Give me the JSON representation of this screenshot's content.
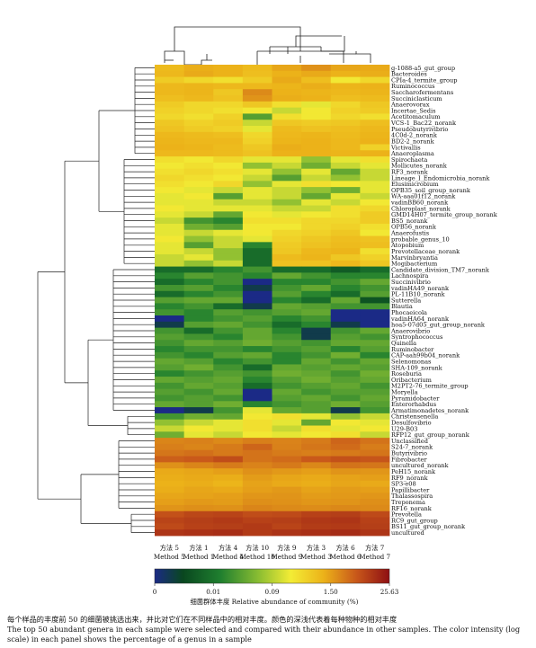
{
  "chart_data": {
    "type": "heatmap",
    "title": "",
    "xlabel": "",
    "ylabel": "",
    "x": [
      {
        "cn": "方法 5",
        "en": "Method 5"
      },
      {
        "cn": "方法 1",
        "en": "Method 1"
      },
      {
        "cn": "方法 4",
        "en": "Method 4"
      },
      {
        "cn": "方法 10",
        "en": "Method 10"
      },
      {
        "cn": "方法 9",
        "en": "Method 9"
      },
      {
        "cn": "方法 3",
        "en": "Method 3"
      },
      {
        "cn": "方法 6",
        "en": "Method 6"
      },
      {
        "cn": "方法 7",
        "en": "Method 7"
      }
    ],
    "y": [
      "g-1088-a5_gut_group",
      "Bacteroides",
      "CPIa-4_termite_group",
      "Ruminococcus",
      "Saccharofermentans",
      "Succiniclasticum",
      "Anaerovorax",
      "Incertae_Sedis",
      "Acetitomaculum",
      "VCS-1_Bac22_norank",
      "Pseudobutyrivibrio",
      "4C0d-2_norank",
      "BD2-2_norank",
      "Victivallis",
      "Anaeroplasma",
      "Spirochaeta",
      "Mollicutes_norank",
      "RF3_norank",
      "Lineage_I_Endomicrobia_norank",
      "Elusimicrobium",
      "OPB35_soil_group_norank",
      "WA-aaa01f12_norank",
      "vadinBB60_norank",
      "Chloroplast_norank",
      "GMD14H07_termite_group_norank",
      "BS5_norank",
      "OPB56_norank",
      "Anaerofustis",
      "probable_genus_10",
      "Atopobium",
      "Prevotellaceae_norank",
      "Marvinbryantia",
      "Mogibacterium",
      "Candidate_division_TM7_norank",
      "Lachnospira",
      "Succinivibrio",
      "vadinHA49_norank",
      "PL-11B10_norank",
      "Sutterella",
      "Blautia",
      "Phocaeicola",
      "vadinHA64_norank",
      "hoa5-07d05_gut_group_norank",
      "Anaerovibrio",
      "Syntrophococcus",
      "Quinella",
      "Ruminobacter",
      "CAP-aah99b04_norank",
      "Selenomonas",
      "SHA-109_norank",
      "Roseburia",
      "Oribacterium",
      "M2PT2-76_termite_group",
      "Moryella",
      "Pyramidobacter",
      "Enterorhabdus",
      "Armatimonadetes_norank",
      "Christensenella",
      "Desulfovibrio",
      "U29-B03",
      "RFP12_gut_group_norank",
      "Unclassified",
      "S24-7_norank",
      "Butyrivibrio",
      "Fibrobacter",
      "uncultured_norank",
      "PeH15_norank",
      "RF9_norank",
      "SP3-e08",
      "Papillibacter",
      "Thalassospira",
      "Treponema",
      "RF16_norank",
      "Prevotella",
      "RC9_gut_group",
      "BS11_gut_group_norank",
      "uncultured"
    ],
    "values": [
      [
        1.2,
        1.6,
        1.5,
        1.2,
        1.8,
        2.5,
        1.8,
        1.7
      ],
      [
        1.3,
        1.7,
        1.5,
        1.1,
        1.5,
        1.7,
        1.5,
        1.6
      ],
      [
        0.8,
        0.6,
        0.5,
        0.8,
        1.7,
        1.1,
        0.4,
        0.6
      ],
      [
        1.3,
        1.4,
        1.3,
        1.3,
        1.4,
        1.6,
        1.4,
        1.5
      ],
      [
        1.3,
        1.4,
        0.9,
        2.8,
        1.5,
        1.4,
        1.3,
        1.4
      ],
      [
        1.1,
        1.3,
        1.0,
        2.4,
        1.6,
        1.5,
        1.1,
        1.2
      ],
      [
        0.8,
        0.6,
        0.6,
        0.9,
        0.5,
        0.3,
        0.6,
        0.9
      ],
      [
        0.7,
        0.6,
        0.5,
        0.4,
        0.2,
        0.4,
        0.7,
        0.8
      ],
      [
        0.6,
        0.5,
        0.7,
        0.04,
        0.5,
        0.4,
        0.6,
        0.5
      ],
      [
        0.9,
        0.7,
        0.8,
        0.2,
        0.9,
        0.8,
        0.9,
        1.1
      ],
      [
        1.0,
        0.8,
        0.7,
        0.3,
        1.2,
        1.0,
        1.1,
        1.3
      ],
      [
        1.3,
        1.2,
        1.1,
        0.6,
        1.3,
        1.4,
        1.2,
        1.4
      ],
      [
        1.4,
        1.3,
        1.3,
        0.7,
        1.4,
        1.5,
        1.3,
        1.5
      ],
      [
        1.5,
        1.4,
        1.2,
        0.9,
        1.6,
        1.5,
        1.3,
        0.7
      ],
      [
        1.3,
        1.3,
        1.2,
        1.0,
        1.5,
        1.5,
        1.4,
        1.5
      ],
      [
        0.5,
        0.4,
        0.6,
        0.3,
        0.3,
        0.1,
        0.3,
        0.5
      ],
      [
        0.4,
        0.5,
        0.4,
        0.1,
        0.2,
        0.06,
        0.2,
        0.3
      ],
      [
        0.5,
        0.6,
        0.5,
        0.3,
        0.1,
        0.3,
        0.05,
        0.2
      ],
      [
        0.6,
        0.5,
        0.4,
        0.2,
        0.04,
        0.2,
        0.1,
        0.2
      ],
      [
        0.5,
        0.4,
        0.6,
        0.1,
        0.3,
        0.5,
        0.4,
        0.3
      ],
      [
        0.4,
        0.3,
        0.2,
        0.3,
        0.2,
        0.1,
        0.06,
        0.3
      ],
      [
        0.3,
        0.4,
        0.04,
        0.3,
        0.2,
        0.05,
        0.3,
        0.2
      ],
      [
        0.3,
        0.3,
        0.2,
        0.2,
        0.1,
        0.3,
        0.2,
        0.4
      ],
      [
        0.4,
        0.3,
        0.3,
        0.3,
        0.2,
        0.2,
        0.5,
        0.6
      ],
      [
        0.3,
        0.2,
        0.05,
        0.4,
        0.3,
        0.4,
        0.5,
        0.8
      ],
      [
        0.2,
        0.03,
        0.02,
        0.5,
        0.5,
        0.6,
        0.6,
        0.8
      ],
      [
        0.3,
        0.06,
        0.04,
        0.4,
        0.4,
        0.6,
        0.7,
        0.5
      ],
      [
        0.3,
        0.2,
        0.3,
        0.4,
        0.6,
        0.7,
        0.9,
        0.4
      ],
      [
        0.4,
        0.1,
        0.2,
        0.3,
        0.7,
        0.9,
        1.1,
        1.0
      ],
      [
        0.3,
        0.04,
        0.2,
        0.02,
        0.8,
        1.0,
        1.2,
        1.1
      ],
      [
        0.3,
        0.2,
        0.1,
        0.01,
        0.9,
        1.3,
        1.4,
        0.5
      ],
      [
        0.2,
        0.3,
        0.1,
        0.01,
        1.2,
        1.4,
        0.9,
        0.7
      ],
      [
        0.2,
        0.1,
        0.2,
        0.01,
        1.0,
        1.0,
        1.3,
        0.9
      ],
      [
        0.01,
        0.01,
        0.02,
        0.03,
        0.01,
        0.01,
        0.006,
        0.01
      ],
      [
        0.02,
        0.04,
        0.03,
        0.02,
        0.05,
        0.03,
        0.02,
        0.02
      ],
      [
        0.01,
        0.02,
        0.03,
        0.001,
        0.02,
        0.02,
        0.03,
        0.05
      ],
      [
        0.03,
        0.04,
        0.02,
        0.002,
        0.03,
        0.05,
        0.02,
        0.03
      ],
      [
        0.01,
        0.02,
        0.03,
        0.001,
        0.04,
        0.02,
        0.01,
        0.04
      ],
      [
        0.04,
        0.05,
        0.05,
        0.001,
        0.02,
        0.01,
        0.05,
        0.005
      ],
      [
        0.02,
        0.03,
        0.01,
        0.002,
        0.05,
        0.04,
        0.03,
        0.03
      ],
      [
        0.03,
        0.02,
        0.04,
        0.03,
        0.04,
        0.05,
        0.001,
        0.001
      ],
      [
        0.001,
        0.02,
        0.03,
        0.04,
        0.02,
        0.03,
        0.001,
        0.001
      ],
      [
        0.002,
        0.04,
        0.05,
        0.03,
        0.01,
        0.02,
        0.002,
        0.001
      ],
      [
        0.03,
        0.01,
        0.03,
        0.05,
        0.02,
        0.002,
        0.03,
        0.05
      ],
      [
        0.04,
        0.03,
        0.02,
        0.05,
        0.03,
        0.002,
        0.04,
        0.03
      ],
      [
        0.03,
        0.05,
        0.04,
        0.06,
        0.04,
        0.03,
        0.05,
        0.05
      ],
      [
        0.02,
        0.03,
        0.03,
        0.02,
        0.03,
        0.04,
        0.02,
        0.04
      ],
      [
        0.03,
        0.02,
        0.04,
        0.05,
        0.02,
        0.03,
        0.06,
        0.02
      ],
      [
        0.05,
        0.04,
        0.02,
        0.03,
        0.02,
        0.05,
        0.03,
        0.05
      ],
      [
        0.04,
        0.06,
        0.03,
        0.01,
        0.05,
        0.04,
        0.05,
        0.04
      ],
      [
        0.02,
        0.03,
        0.04,
        0.03,
        0.06,
        0.05,
        0.03,
        0.06
      ],
      [
        0.05,
        0.04,
        0.05,
        0.02,
        0.04,
        0.06,
        0.04,
        0.05
      ],
      [
        0.03,
        0.05,
        0.04,
        0.01,
        0.03,
        0.04,
        0.05,
        0.03
      ],
      [
        0.04,
        0.03,
        0.05,
        0.001,
        0.05,
        0.03,
        0.04,
        0.04
      ],
      [
        0.03,
        0.04,
        0.03,
        0.001,
        0.04,
        0.05,
        0.03,
        0.05
      ],
      [
        0.05,
        0.04,
        0.06,
        0.02,
        0.03,
        0.04,
        0.06,
        0.04
      ],
      [
        0.001,
        0.002,
        0.03,
        0.3,
        0.05,
        0.04,
        0.002,
        0.03
      ],
      [
        0.03,
        0.06,
        0.05,
        0.4,
        0.5,
        0.3,
        0.1,
        0.2
      ],
      [
        0.1,
        0.2,
        0.3,
        0.5,
        0.3,
        0.05,
        0.4,
        0.3
      ],
      [
        0.2,
        0.4,
        0.3,
        0.5,
        0.2,
        0.5,
        0.3,
        0.4
      ],
      [
        0.06,
        0.3,
        0.2,
        0.4,
        0.3,
        0.4,
        0.5,
        0.2
      ],
      [
        3.0,
        3.2,
        2.8,
        3.3,
        3.1,
        3.5,
        5.0,
        4.0
      ],
      [
        3.3,
        3.0,
        3.5,
        5.0,
        3.2,
        3.8,
        4.5,
        3.4
      ],
      [
        3.8,
        4.2,
        3.6,
        4.0,
        3.5,
        3.3,
        3.6,
        3.9
      ],
      [
        5.5,
        6.0,
        7.5,
        4.0,
        4.5,
        6.0,
        7.0,
        6.5
      ],
      [
        2.5,
        3.0,
        3.5,
        3.1,
        3.6,
        2.9,
        4.0,
        3.8
      ],
      [
        1.7,
        1.8,
        2.0,
        2.5,
        2.2,
        2.0,
        2.4,
        2.3
      ],
      [
        1.6,
        1.7,
        1.6,
        2.1,
        1.8,
        1.7,
        1.9,
        2.0
      ],
      [
        1.5,
        1.6,
        1.4,
        1.9,
        1.7,
        1.6,
        1.8,
        1.7
      ],
      [
        1.6,
        1.8,
        1.7,
        2.0,
        2.2,
        1.9,
        2.1,
        2.0
      ],
      [
        1.8,
        1.9,
        2.0,
        2.3,
        2.4,
        2.1,
        2.2,
        2.3
      ],
      [
        2.0,
        2.2,
        2.1,
        2.6,
        2.5,
        2.3,
        2.4,
        2.6
      ],
      [
        2.4,
        2.6,
        2.5,
        3.0,
        2.8,
        2.7,
        2.9,
        2.8
      ],
      [
        7.0,
        8.5,
        9.0,
        7.5,
        8.0,
        9.5,
        10.0,
        8.0
      ],
      [
        9.0,
        10.0,
        11.0,
        9.5,
        10.0,
        11.5,
        12.0,
        9.5
      ],
      [
        8.0,
        9.5,
        10.0,
        11.0,
        9.0,
        10.5,
        11.0,
        10.0
      ],
      [
        12.0,
        13.0,
        14.0,
        11.0,
        12.5,
        13.5,
        14.5,
        12.0
      ]
    ],
    "colorbar": {
      "ticks": [
        "0",
        "0.01",
        "0.09",
        "1.50",
        "25.63"
      ],
      "label": "细菌群体丰度 Relative abundance of community (%)",
      "scale": "log"
    },
    "colors": [
      "#1b2a86",
      "#09471f",
      "#1f7f2f",
      "#88bc32",
      "#f3ec35",
      "#ecb219",
      "#c8571a",
      "#8e0f13"
    ]
  },
  "caption": {
    "cn": "每个样品的丰度前 50 的细菌被挑选出来，并比对它们在不同样品中的相对丰度。颜色的深浅代表着每种物种的相对丰度",
    "en": "The top 50 abundant genera in each sample were selected and compared with their abundance in other samples. The color intensity (log scale) in each panel shows the percentage of a genus in a sample"
  }
}
